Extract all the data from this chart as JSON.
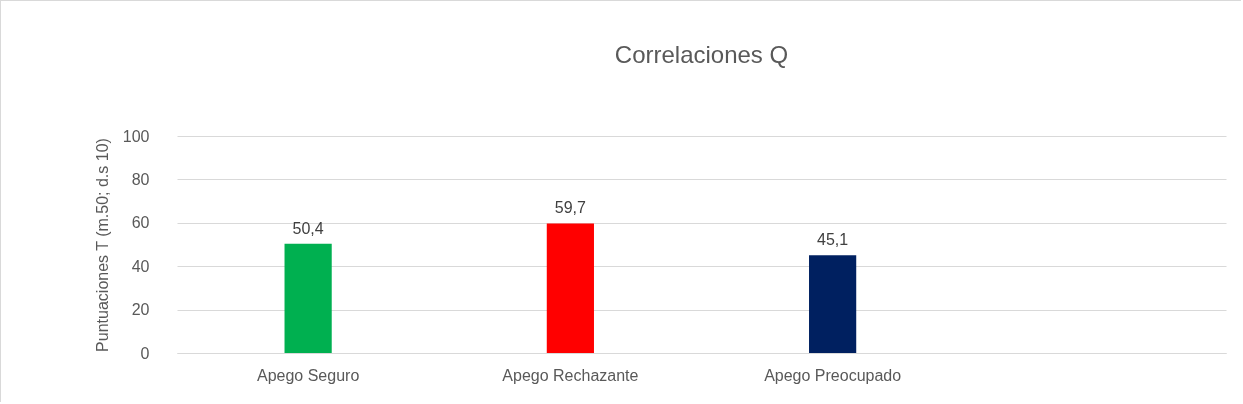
{
  "chart_data": {
    "type": "bar",
    "title": "Correlaciones Q",
    "ylabel": "Puntuaciones T (m.50; d.s 10)",
    "categories": [
      "Apego Seguro",
      "Apego Rechazante",
      "Apego Preocupado",
      null
    ],
    "values": [
      50.4,
      59.7,
      45.1,
      null
    ],
    "colors": [
      "#00b050",
      "#ff0000",
      "#002060",
      null
    ],
    "value_labels": [
      "50,4",
      "59,7",
      "45,1",
      null
    ],
    "ylim": [
      0,
      100
    ],
    "yticks": [
      0,
      20,
      40,
      60,
      80,
      100
    ],
    "grid": "y"
  }
}
